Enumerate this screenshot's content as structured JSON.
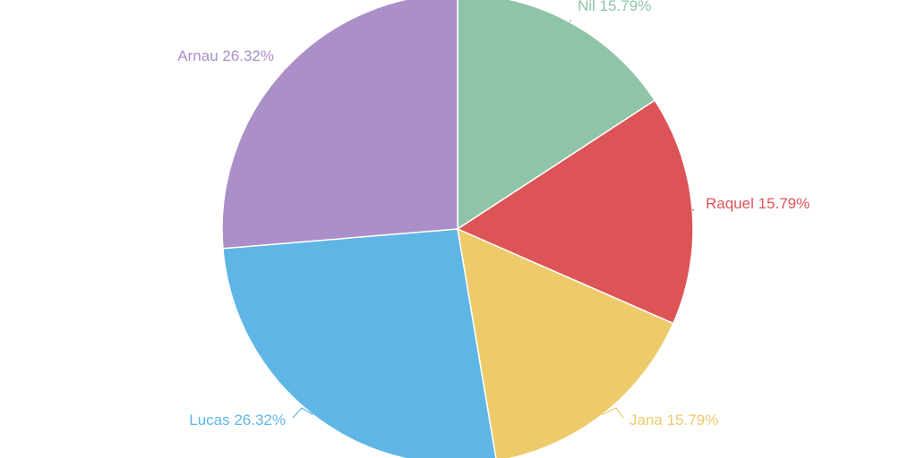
{
  "chart_data": {
    "type": "pie",
    "slices": [
      {
        "name": "Nil",
        "value": 15.79,
        "label": "Nil 15.79%",
        "color": "#8fc4a9"
      },
      {
        "name": "Raquel",
        "value": 15.79,
        "label": "Raquel 15.79%",
        "color": "#dd5457"
      },
      {
        "name": "Jana",
        "value": 15.79,
        "label": "Jana 15.79%",
        "color": "#eecb6a"
      },
      {
        "name": "Lucas",
        "value": 26.32,
        "label": "Lucas 26.32%",
        "color": "#5fb6e5"
      },
      {
        "name": "Arnau",
        "value": 26.32,
        "label": "Arnau 26.32%",
        "color": "#ab8fc8"
      }
    ],
    "start_angle_deg": 0,
    "direction": "clockwise"
  }
}
